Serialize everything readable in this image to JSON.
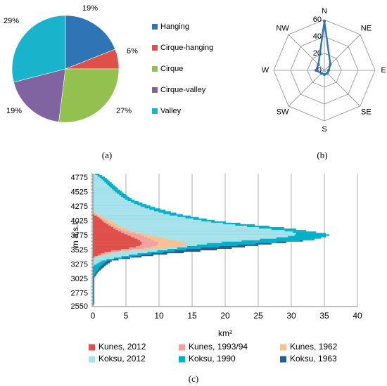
{
  "chart_data": [
    {
      "type": "pie",
      "title": "",
      "slices": [
        {
          "name": "Hanging",
          "value": 19,
          "label": "19%",
          "color": "#2e75b6"
        },
        {
          "name": "Cirque-hanging",
          "value": 6,
          "label": "6%",
          "color": "#e0504a"
        },
        {
          "name": "Cirque",
          "value": 27,
          "label": "27%",
          "color": "#92c150"
        },
        {
          "name": "Cirque-valley",
          "value": 19,
          "label": "19%",
          "color": "#8064a2"
        },
        {
          "name": "Valley",
          "value": 29,
          "label": "29%",
          "color": "#1ab3cc"
        }
      ],
      "legend_position": "right",
      "caption": "(a)"
    },
    {
      "type": "radar",
      "directions": [
        "N",
        "NE",
        "E",
        "SE",
        "S",
        "SW",
        "W",
        "NW"
      ],
      "values": [
        58,
        10,
        5,
        5,
        5,
        5,
        10,
        10
      ],
      "rings": [
        0,
        20,
        40,
        60
      ],
      "ring_labels": [
        "0",
        "20",
        "40",
        "60"
      ],
      "color": "#2e75b6",
      "caption": "(b)"
    },
    {
      "type": "bar",
      "orientation": "horizontal",
      "ylabel": "m a.s.l.",
      "xlabel": "km²",
      "ytick_labels": [
        "4775",
        "4525",
        "4275",
        "4025",
        "3775",
        "3525",
        "3275",
        "3025",
        "2775",
        "2550"
      ],
      "xticks": [
        0,
        5,
        10,
        15,
        20,
        25,
        30,
        35,
        40
      ],
      "xtick_labels": [
        "0",
        "5",
        "10",
        "15",
        "20",
        "25",
        "30",
        "35",
        "40"
      ],
      "xlim": [
        0,
        40
      ],
      "ylim": [
        2550,
        4850
      ],
      "grid": "vertical",
      "legend_position": "bottom",
      "series": [
        {
          "name": "Koksu, 1963",
          "color": "#1f5f96",
          "profile": [
            [
              2550,
              0
            ],
            [
              2600,
              0.2
            ],
            [
              3050,
              0.2
            ],
            [
              3150,
              0.8
            ],
            [
              3250,
              1.8
            ],
            [
              3350,
              3
            ],
            [
              3450,
              10
            ],
            [
              3550,
              20
            ],
            [
              3650,
              28
            ],
            [
              3700,
              33
            ],
            [
              3750,
              34.5
            ],
            [
              3800,
              34
            ],
            [
              3850,
              30
            ],
            [
              3900,
              28
            ],
            [
              4025,
              18
            ],
            [
              4150,
              12
            ],
            [
              4275,
              8
            ],
            [
              4400,
              5
            ],
            [
              4525,
              3.5
            ],
            [
              4650,
              2.5
            ],
            [
              4775,
              1.6
            ],
            [
              4850,
              0.6
            ]
          ]
        },
        {
          "name": "Koksu, 1990",
          "color": "#00b0c8",
          "profile": [
            [
              2550,
              0
            ],
            [
              2600,
              0.1
            ],
            [
              3050,
              0.1
            ],
            [
              3150,
              0.5
            ],
            [
              3250,
              1.2
            ],
            [
              3350,
              2.3
            ],
            [
              3450,
              8
            ],
            [
              3550,
              15
            ],
            [
              3650,
              26
            ],
            [
              3700,
              33
            ],
            [
              3750,
              35
            ],
            [
              3800,
              36
            ],
            [
              3850,
              33
            ],
            [
              3900,
              30
            ],
            [
              4025,
              19
            ],
            [
              4150,
              13
            ],
            [
              4275,
              9
            ],
            [
              4400,
              6
            ],
            [
              4525,
              4.5
            ],
            [
              4650,
              3.2
            ],
            [
              4775,
              2
            ],
            [
              4850,
              0.8
            ]
          ]
        },
        {
          "name": "Koksu, 2012",
          "color": "#a8e3ec",
          "profile": [
            [
              2550,
              0
            ],
            [
              3250,
              0
            ],
            [
              3350,
              1.5
            ],
            [
              3450,
              6
            ],
            [
              3550,
              12
            ],
            [
              3650,
              18
            ],
            [
              3700,
              24
            ],
            [
              3750,
              29
            ],
            [
              3800,
              31
            ],
            [
              3850,
              30
            ],
            [
              3900,
              26
            ],
            [
              4025,
              17
            ],
            [
              4150,
              11
            ],
            [
              4275,
              7.5
            ],
            [
              4400,
              5
            ],
            [
              4525,
              3.5
            ],
            [
              4650,
              2.3
            ],
            [
              4775,
              1.2
            ],
            [
              4850,
              0.2
            ]
          ]
        },
        {
          "name": "Kunes, 1962",
          "color": "#fac08f",
          "profile": [
            [
              2550,
              0
            ],
            [
              3400,
              0
            ],
            [
              3500,
              4
            ],
            [
              3550,
              10
            ],
            [
              3600,
              14.5
            ],
            [
              3650,
              14
            ],
            [
              3700,
              12
            ],
            [
              3750,
              10
            ],
            [
              3800,
              8
            ],
            [
              3850,
              6
            ],
            [
              3950,
              4
            ],
            [
              4025,
              3
            ],
            [
              4100,
              1.5
            ],
            [
              4150,
              0.6
            ],
            [
              4200,
              0
            ]
          ]
        },
        {
          "name": "Kunes, 1993/94",
          "color": "#f2a0a0",
          "profile": [
            [
              2550,
              0
            ],
            [
              3400,
              0
            ],
            [
              3500,
              3
            ],
            [
              3550,
              7
            ],
            [
              3600,
              9.5
            ],
            [
              3650,
              10
            ],
            [
              3700,
              9
            ],
            [
              3750,
              8
            ],
            [
              3800,
              7
            ],
            [
              3850,
              5
            ],
            [
              3950,
              3
            ],
            [
              4025,
              2
            ],
            [
              4100,
              1
            ],
            [
              4150,
              0
            ]
          ]
        },
        {
          "name": "Kunes, 2012",
          "color": "#e0504a",
          "profile": [
            [
              2550,
              0
            ],
            [
              3400,
              0
            ],
            [
              3500,
              2
            ],
            [
              3550,
              5
            ],
            [
              3600,
              7
            ],
            [
              3650,
              7.5
            ],
            [
              3700,
              7
            ],
            [
              3750,
              6
            ],
            [
              3800,
              5
            ],
            [
              3850,
              4
            ],
            [
              3950,
              2.5
            ],
            [
              4025,
              1.5
            ],
            [
              4100,
              0.8
            ],
            [
              4150,
              0
            ]
          ]
        }
      ],
      "legend_order": [
        "Kunes, 2012",
        "Kunes, 1993/94",
        "Kunes, 1962",
        "Koksu, 2012",
        "Koksu, 1990",
        "Koksu, 1963"
      ],
      "caption": "(c)"
    }
  ]
}
